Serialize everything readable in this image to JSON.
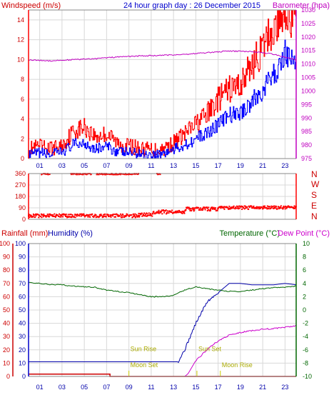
{
  "colors": {
    "wind": "#ff0000",
    "gust": "#0000ff",
    "baro": "#c000c0",
    "dir": "#ff0000",
    "rain": "#cc0000",
    "humidity": "#0000aa",
    "temp": "#006600",
    "dew": "#cc00cc",
    "sun": "#cccc00",
    "grid": "#d8d8d8",
    "axisLeftBottom": "#0000cc",
    "axisRightBottom": "#006600"
  },
  "chart_data": [
    {
      "type": "line",
      "title": "24 hour graph day : 26 December 2015",
      "ylabel": "Windspeed (m/s)",
      "y2label": "Barometer (hpa)",
      "ylim": [
        0,
        15
      ],
      "yticks": [
        0,
        2,
        4,
        6,
        8,
        10,
        12,
        14
      ],
      "y2lim": [
        975,
        1030
      ],
      "y2ticks": [
        975,
        980,
        985,
        990,
        995,
        1000,
        1005,
        1010,
        1015,
        1020,
        1025,
        1030
      ],
      "xlim": [
        0,
        24
      ],
      "xticks": [
        "01",
        "03",
        "05",
        "07",
        "09",
        "11",
        "13",
        "15",
        "17",
        "19",
        "21",
        "23"
      ],
      "grid": true,
      "series": [
        {
          "key": "wind",
          "x": [
            0,
            1,
            2,
            3,
            4,
            5,
            6,
            7,
            8,
            9,
            10,
            11,
            12,
            13,
            14,
            15,
            16,
            17,
            18,
            19,
            20,
            21,
            21.5,
            22,
            22.5,
            23,
            23.5,
            24
          ],
          "values": [
            1.0,
            1.2,
            1.0,
            1.3,
            2.8,
            3.2,
            2.2,
            2.5,
            1.5,
            1.3,
            1.0,
            0.9,
            1.0,
            1.6,
            2.5,
            3.5,
            4.5,
            6.0,
            7.0,
            7.5,
            9.5,
            11.0,
            12.5,
            13.0,
            14.0,
            15.5,
            14.0,
            13.5
          ]
        },
        {
          "key": "gust",
          "x": [
            0,
            1,
            2,
            3,
            4,
            5,
            6,
            7,
            8,
            9,
            10,
            11,
            12,
            13,
            14,
            15,
            16,
            17,
            18,
            19,
            20,
            21,
            21.5,
            22,
            22.5,
            23,
            23.5,
            24
          ],
          "values": [
            0.3,
            0.6,
            0.4,
            0.7,
            1.4,
            1.6,
            1.0,
            1.2,
            0.7,
            0.6,
            0.5,
            0.4,
            0.5,
            0.9,
            1.4,
            2.0,
            2.6,
            3.5,
            4.4,
            4.6,
            5.8,
            6.8,
            7.8,
            8.5,
            9.2,
            11.0,
            10.0,
            9.6
          ]
        },
        {
          "key": "baro",
          "x": [
            0,
            2,
            4,
            6,
            8,
            10,
            12,
            14,
            16,
            18,
            20,
            21,
            22,
            23,
            24
          ],
          "values": [
            1011.5,
            1011.2,
            1011.6,
            1012.0,
            1012.6,
            1013.0,
            1013.2,
            1013.6,
            1014.2,
            1014.8,
            1014.6,
            1014.2,
            1013.6,
            1012.6,
            1011.6
          ]
        }
      ]
    },
    {
      "type": "scatter",
      "ylabel_letters": [
        "N",
        "W",
        "S",
        "E",
        "N"
      ],
      "yticks": [
        0,
        90,
        180,
        270,
        360
      ],
      "ylim": [
        0,
        360
      ],
      "xlim": [
        0,
        24
      ],
      "grid": true,
      "series": [
        {
          "key": "dir",
          "segments": [
            {
              "from": 1.2,
              "to": 1.9,
              "level": 357,
              "spread": 10
            },
            {
              "from": 3.8,
              "to": 5.6,
              "level": 357,
              "spread": 10
            },
            {
              "from": 6.1,
              "to": 9.9,
              "level": 357,
              "spread": 10
            },
            {
              "from": 11.5,
              "to": 11.8,
              "level": 357,
              "spread": 8
            },
            {
              "from": 0.0,
              "to": 9.9,
              "level": 28,
              "spread": 28
            },
            {
              "from": 9.9,
              "to": 11.2,
              "level": 38,
              "spread": 30
            },
            {
              "from": 11.2,
              "to": 14.0,
              "level": 58,
              "spread": 30
            },
            {
              "from": 14.0,
              "to": 17.0,
              "level": 80,
              "spread": 30
            },
            {
              "from": 17.0,
              "to": 24.0,
              "level": 92,
              "spread": 26
            }
          ]
        }
      ]
    },
    {
      "type": "line",
      "ylabel": "Rainfall (mm)",
      "ylabel2": "Humidity (%)",
      "y2label": "Temperature (°C)",
      "y2label2": "Dew Point (°C)",
      "ylim": [
        0,
        100
      ],
      "yticks": [
        0,
        10,
        20,
        30,
        40,
        50,
        60,
        70,
        80,
        90,
        100
      ],
      "y2lim": [
        -10,
        10
      ],
      "y2ticks": [
        -10,
        -8,
        -6,
        -4,
        -2,
        0,
        2,
        4,
        6,
        8,
        10
      ],
      "xlim": [
        0,
        24
      ],
      "xticks": [
        "01",
        "03",
        "05",
        "07",
        "09",
        "11",
        "13",
        "15",
        "17",
        "19",
        "21",
        "23"
      ],
      "grid": true,
      "annotations": [
        {
          "text": "Sun Rise",
          "x": 9.0,
          "y": 18
        },
        {
          "text": "Moon Set",
          "x": 9.0,
          "y": 6
        },
        {
          "text": "Sun Set",
          "x": 15.1,
          "y": 18
        },
        {
          "text": "Moon Rise",
          "x": 17.2,
          "y": 6
        }
      ],
      "series": [
        {
          "key": "rain",
          "x": [
            0,
            7.3,
            7.3,
            24
          ],
          "values": [
            1.8,
            1.8,
            0,
            0
          ]
        },
        {
          "key": "humidity",
          "x": [
            0,
            9,
            11,
            12,
            13,
            13.4,
            14,
            15,
            16,
            17,
            18,
            19,
            20,
            21,
            22,
            23,
            24
          ],
          "values": [
            11,
            11,
            11,
            11,
            11,
            11,
            20,
            40,
            56,
            63,
            70,
            70,
            69,
            69,
            69,
            70,
            69
          ]
        },
        {
          "key": "temp",
          "x": [
            0,
            1,
            2,
            3,
            4,
            5,
            6,
            7,
            8,
            9,
            10,
            11,
            12,
            13,
            14,
            15,
            16,
            17,
            18,
            19,
            20,
            21,
            22,
            23,
            24
          ],
          "values": [
            4.2,
            4.0,
            3.8,
            3.8,
            3.6,
            3.5,
            3.4,
            3.0,
            2.8,
            2.6,
            2.3,
            2.0,
            2.0,
            2.2,
            3.0,
            3.5,
            3.2,
            3.0,
            2.8,
            2.8,
            3.0,
            3.2,
            3.4,
            3.4,
            3.6
          ]
        },
        {
          "key": "dew",
          "x": [
            14.0,
            14.3,
            15,
            16,
            16.8,
            17.5,
            18,
            19,
            20,
            21,
            22,
            23,
            24
          ],
          "values": [
            -10,
            -9.6,
            -7.6,
            -6.0,
            -4.9,
            -4.2,
            -3.8,
            -3.4,
            -3.1,
            -2.9,
            -2.8,
            -2.6,
            -2.4
          ]
        }
      ]
    }
  ]
}
